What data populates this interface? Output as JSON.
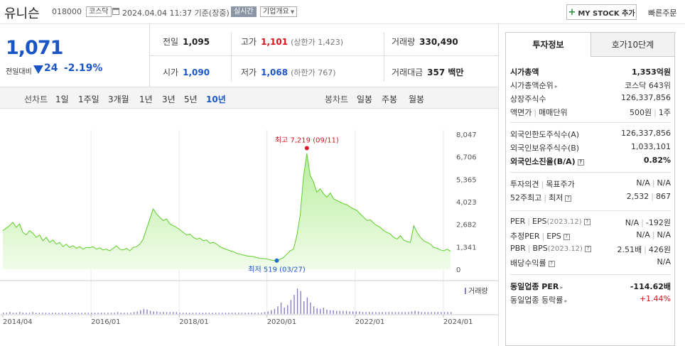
{
  "header": {
    "name": "유니슨",
    "code": "018000",
    "market": "코스닥",
    "datetime": "2024.04.04 11:37 기준(장중)",
    "realtime": "실시간",
    "company_info": "기업개요",
    "my_stock": "MY STOCK 추가",
    "fast_order": "빠른주문"
  },
  "price": {
    "current": "1,071",
    "prev_label": "전일대비",
    "change": "24",
    "change_pct": "-2.19%",
    "direction": "down"
  },
  "stats": {
    "prev_close": {
      "label": "전일",
      "value": "1,095"
    },
    "high": {
      "label": "고가",
      "value": "1,101",
      "sub": "(상한가 1,423)"
    },
    "volume": {
      "label": "거래량",
      "value": "330,490"
    },
    "open": {
      "label": "시가",
      "value": "1,090"
    },
    "low": {
      "label": "저가",
      "value": "1,068",
      "sub": "(하한가 767)"
    },
    "amount": {
      "label": "거래대금",
      "value": "357 백만"
    }
  },
  "periods": {
    "line_label": "선차트",
    "line_items": [
      "1일",
      "1주일",
      "3개월",
      "1년",
      "3년",
      "5년",
      "10년"
    ],
    "selected": "10년",
    "candle_label": "봉차트",
    "candle_items": [
      "일봉",
      "주봉",
      "월봉"
    ]
  },
  "chart_data": {
    "type": "area",
    "y_ticks": [
      "8,047",
      "6,706",
      "5,365",
      "4,023",
      "2,682",
      "1,341",
      "0"
    ],
    "ylim": [
      0,
      8047
    ],
    "x_ticks": [
      "2014/04",
      "2016/01",
      "2018/01",
      "2020/01",
      "2022/01",
      "2024/01"
    ],
    "high_annotation": "최고 7,219 (09/11)",
    "low_annotation": "최저 519 (03/27)",
    "volume_label": "거래량",
    "series": [
      {
        "values": [
          2300,
          2450,
          2600,
          2800,
          2500,
          2700,
          2200,
          2050,
          2300,
          2150,
          1900,
          2050,
          1700,
          1900,
          1600,
          1750,
          1500,
          1600,
          1350,
          1500,
          1300,
          1400,
          1250,
          1350,
          1200,
          1300,
          1280,
          1350,
          1200,
          1280,
          1150,
          1200,
          1100,
          1250,
          1400,
          1200,
          1150,
          1250,
          1100,
          1300,
          1350,
          1500,
          1800,
          2400,
          3000,
          3600,
          3300,
          3100,
          2900,
          3000,
          2700,
          2600,
          2500,
          2350,
          2200,
          2050,
          2100,
          1900,
          1800,
          1850,
          1700,
          1750,
          1550,
          1600,
          1500,
          1350,
          1250,
          1180,
          1100,
          1050,
          950,
          900,
          850,
          800,
          780,
          760,
          700,
          650,
          640,
          620,
          560,
          530,
          519,
          600,
          700,
          900,
          1100,
          1200,
          2000,
          3200,
          5500,
          6900,
          5600,
          5200,
          4600,
          4800,
          4500,
          4300,
          4550,
          4200,
          4100,
          4000,
          3900,
          3850,
          3700,
          3600,
          3500,
          3300,
          3100,
          2900,
          2950,
          2750,
          2600,
          2500,
          2300,
          2200,
          2100,
          1900,
          1800,
          2000,
          1750,
          1650,
          1600,
          2600,
          2200,
          1900,
          1700,
          1600,
          1500,
          1300,
          1250,
          1150,
          1100,
          1200,
          1071
        ]
      }
    ],
    "volume_values": [
      2,
      2,
      3,
      2,
      2,
      3,
      2,
      2,
      2,
      3,
      2,
      2,
      2,
      2,
      2,
      2,
      2,
      2,
      2,
      2,
      2,
      2,
      2,
      2,
      2,
      2,
      2,
      2,
      2,
      2,
      2,
      2,
      2,
      2,
      2,
      3,
      2,
      2,
      2,
      2,
      3,
      4,
      6,
      8,
      7,
      5,
      4,
      4,
      3,
      3,
      3,
      3,
      3,
      3,
      2,
      2,
      2,
      2,
      2,
      2,
      2,
      2,
      2,
      2,
      2,
      2,
      2,
      2,
      2,
      2,
      2,
      2,
      2,
      2,
      2,
      2,
      2,
      2,
      2,
      2,
      3,
      4,
      6,
      8,
      12,
      18,
      10,
      14,
      22,
      30,
      40,
      36,
      20,
      26,
      18,
      12,
      9,
      8,
      10,
      7,
      6,
      6,
      5,
      5,
      5,
      5,
      4,
      4,
      4,
      4,
      3,
      3,
      3,
      3,
      3,
      3,
      3,
      3,
      3,
      3,
      3,
      3,
      3,
      3,
      3,
      4,
      5,
      4,
      3,
      3,
      3,
      3,
      3,
      3,
      3,
      3,
      3,
      3
    ]
  },
  "info_panel": {
    "tab_active": "투자정보",
    "tab_other": "호가10단계",
    "rows_group1": [
      {
        "label": "시가총액",
        "value": "1,353억원",
        "bold": true
      },
      {
        "label": "시가총액순위",
        "value": "코스닥 643위",
        "arrow": true
      },
      {
        "label": "상장주식수",
        "value": "126,337,856"
      },
      {
        "label": "액면가",
        "label2": "매매단위",
        "value": "500원",
        "value2": "1주"
      }
    ],
    "rows_group2": [
      {
        "label": "외국인한도주식수(A)",
        "value": "126,337,856"
      },
      {
        "label": "외국인보유주식수(B)",
        "value": "1,033,101"
      },
      {
        "label": "외국인소진율(B/A)",
        "value": "0.82%",
        "bold": true,
        "help": true
      }
    ],
    "rows_group3": [
      {
        "label": "투자의견",
        "label2": "목표주가",
        "value": "N/A",
        "value2": "N/A"
      },
      {
        "label": "52주최고",
        "label2": "최저",
        "value": "2,532",
        "value2": "867",
        "help": true
      }
    ],
    "rows_group4": [
      {
        "label": "PER",
        "label2": "EPS",
        "muted": "(2023.12)",
        "value": "N/A",
        "value2": "-192원",
        "help": true
      },
      {
        "label": "추정PER",
        "label2": "EPS",
        "value": "N/A",
        "value2": "N/A",
        "help": true
      },
      {
        "label": "PBR",
        "label2": "BPS",
        "muted": "(2023.12)",
        "value": "2.51배",
        "value2": "426원",
        "help": true
      },
      {
        "label": "배당수익률",
        "value": "N/A",
        "help": true
      }
    ],
    "rows_group5": [
      {
        "label": "동일업종 PER",
        "value": "-114.62배",
        "bold": true,
        "arrow": true
      },
      {
        "label": "동일업종 등락률",
        "value": "+1.44%",
        "arrow": true,
        "red": true
      }
    ]
  }
}
